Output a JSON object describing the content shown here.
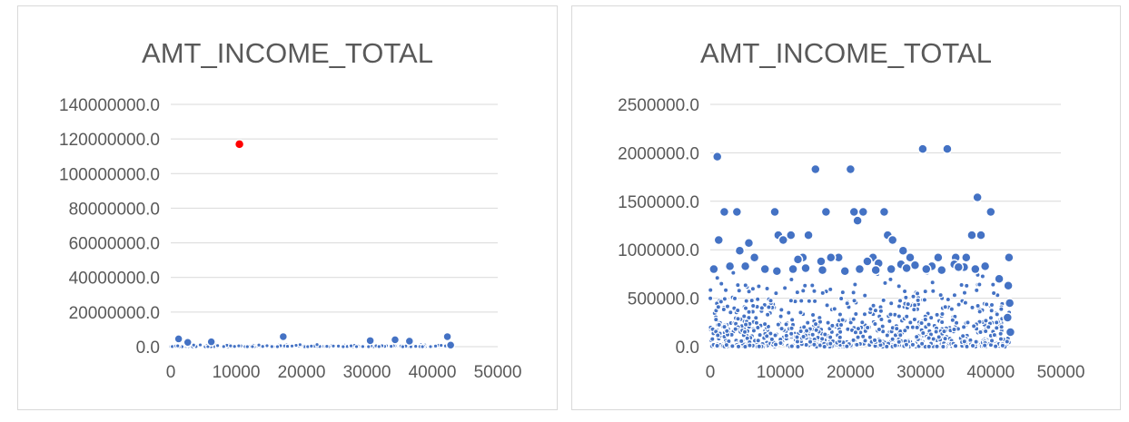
{
  "chart_data": [
    {
      "type": "scatter",
      "title": "AMT_INCOME_TOTAL",
      "xlim": [
        0,
        50000
      ],
      "x_ticks": [
        "0",
        "10000",
        "20000",
        "30000",
        "40000",
        "50000"
      ],
      "ylim": [
        0,
        140000000
      ],
      "y_ticks": [
        "0.0",
        "20000000.0",
        "40000000.0",
        "60000000.0",
        "80000000.0",
        "100000000.0",
        "120000000.0",
        "140000000.0"
      ],
      "grid": true,
      "point_color": "#4472c4",
      "highlight_color": "#ff0000",
      "series": [
        {
          "x": [
            1200,
            2600,
            6200,
            17200,
            30500,
            34300,
            36500,
            42300,
            42800
          ],
          "y": [
            4500000,
            2500000,
            2800000,
            5800000,
            3500000,
            4000000,
            3200000,
            5800000,
            900000
          ]
        },
        {
          "x": [
            10500
          ],
          "y": [
            117000000
          ],
          "highlight": true
        }
      ]
    },
    {
      "type": "scatter",
      "title": "AMT_INCOME_TOTAL",
      "xlim": [
        0,
        50000
      ],
      "x_ticks": [
        "0",
        "10000",
        "20000",
        "30000",
        "40000",
        "50000"
      ],
      "ylim": [
        0,
        2500000
      ],
      "y_ticks": [
        "0.0",
        "500000.0",
        "1000000.0",
        "1500000.0",
        "2000000.0",
        "2500000.0"
      ],
      "grid": true,
      "point_color": "#4472c4",
      "series": [
        {
          "x": [
            1000,
            2000,
            3800,
            1200,
            4200,
            5500,
            6300,
            9200,
            9700,
            10400,
            11500,
            13200,
            14000,
            15000,
            16500,
            18300,
            20000,
            20500,
            21000,
            21800,
            23200,
            24800,
            25300,
            26000,
            27500,
            28500,
            30300,
            32500,
            33800,
            35000,
            36500,
            37300,
            38100,
            38600,
            39200,
            40000,
            12500,
            15800,
            17200,
            22400,
            24000,
            27200,
            29200,
            31600,
            34800,
            36200,
            500,
            2800,
            5000,
            7800,
            9500,
            11800,
            13600,
            16000,
            19200,
            21300,
            23600,
            25800,
            28000,
            30800,
            33000,
            35400,
            37800,
            41200,
            42600,
            42500,
            42700,
            42400,
            42800
          ],
          "y": [
            1960000,
            1390000,
            1390000,
            1100000,
            990000,
            1070000,
            920000,
            1390000,
            1150000,
            1100000,
            1150000,
            920000,
            1150000,
            1830000,
            1390000,
            920000,
            1830000,
            1390000,
            1300000,
            1390000,
            920000,
            1390000,
            1150000,
            1100000,
            990000,
            920000,
            2040000,
            920000,
            2040000,
            920000,
            920000,
            1150000,
            1540000,
            1150000,
            830000,
            1390000,
            900000,
            880000,
            920000,
            880000,
            860000,
            850000,
            840000,
            830000,
            850000,
            820000,
            800000,
            830000,
            830000,
            800000,
            780000,
            800000,
            810000,
            790000,
            780000,
            800000,
            790000,
            800000,
            810000,
            800000,
            790000,
            820000,
            800000,
            700000,
            920000,
            630000,
            450000,
            300000,
            150000
          ]
        }
      ]
    }
  ]
}
